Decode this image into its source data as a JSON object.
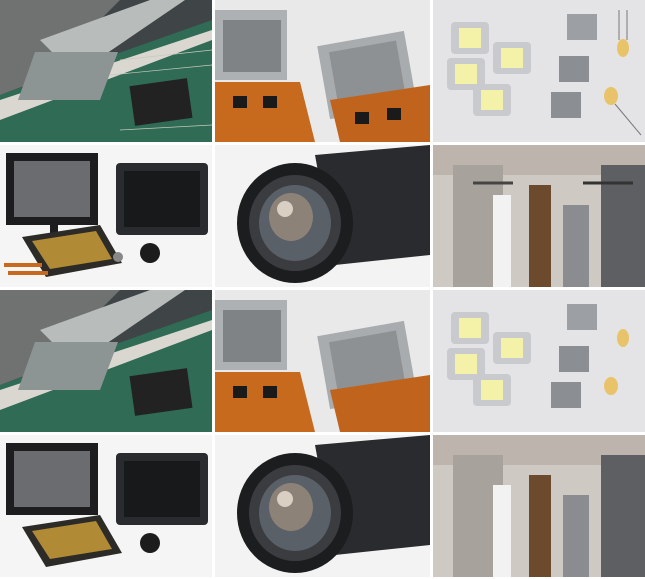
{
  "grid": {
    "columns": 3,
    "rows": 4,
    "tiles": [
      {
        "subject": "lcd-panel-flex-cable"
      },
      {
        "subject": "lcd-microdisplay-modules"
      },
      {
        "subject": "power-led-chips-and-led-matrices"
      },
      {
        "subject": "disassembled-display-monitors"
      },
      {
        "subject": "projector-lens"
      },
      {
        "subject": "projector-chassis-rails"
      },
      {
        "subject": "lcd-panel-flex-cable"
      },
      {
        "subject": "lcd-microdisplay-modules"
      },
      {
        "subject": "power-led-chips-and-led-matrices"
      },
      {
        "subject": "disassembled-display-monitors"
      },
      {
        "subject": "projector-lens"
      },
      {
        "subject": "projector-chassis-rails"
      }
    ]
  },
  "colors": {
    "pcb_green": "#2f6b55",
    "flex_orange": "#c86a1e",
    "metal_silver": "#b9bcc0",
    "led_yellow": "#f4f2a8",
    "lens_black": "#1c1d1f",
    "background_white": "#ffffff"
  }
}
